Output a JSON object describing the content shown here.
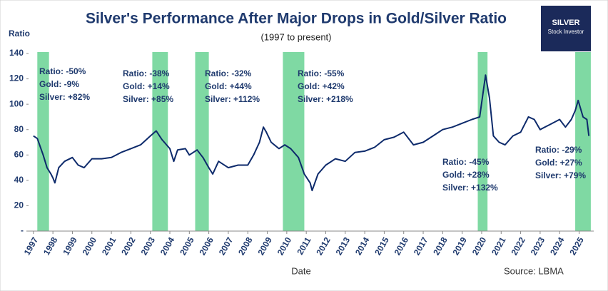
{
  "chart_data": {
    "type": "line",
    "title": "Silver's Performance After Major Drops in Gold/Silver Ratio",
    "subtitle": "(1997 to present)",
    "y_label": "Ratio",
    "x_label": "Date",
    "source": "Source: LBMA",
    "color": "#0d2a6b",
    "highlight_color": "#5fcf8c",
    "x": [
      1997.0,
      1997.2,
      1997.5,
      1997.7,
      1997.9,
      1998.0,
      1998.1,
      1998.3,
      1998.6,
      1999.0,
      1999.3,
      1999.6,
      2000.0,
      2000.5,
      2001.0,
      2001.5,
      2002.0,
      2002.5,
      2003.0,
      2003.3,
      2003.6,
      2004.0,
      2004.2,
      2004.4,
      2004.8,
      2005.0,
      2005.4,
      2005.7,
      2006.0,
      2006.2,
      2006.5,
      2007.0,
      2007.5,
      2008.0,
      2008.3,
      2008.6,
      2008.8,
      2008.95,
      2009.2,
      2009.6,
      2009.9,
      2010.2,
      2010.6,
      2010.9,
      2011.2,
      2011.3,
      2011.6,
      2012.0,
      2012.5,
      2013.0,
      2013.5,
      2014.0,
      2014.5,
      2015.0,
      2015.5,
      2016.0,
      2016.5,
      2017.0,
      2017.5,
      2018.0,
      2018.5,
      2019.0,
      2019.5,
      2019.9,
      2020.2,
      2020.4,
      2020.6,
      2020.9,
      2021.2,
      2021.6,
      2022.0,
      2022.4,
      2022.7,
      2023.0,
      2023.5,
      2024.0,
      2024.3,
      2024.6,
      2024.8,
      2024.95,
      2025.2,
      2025.4,
      2025.5
    ],
    "values": [
      75,
      73,
      60,
      50,
      45,
      42,
      38,
      50,
      55,
      58,
      52,
      50,
      57,
      57,
      58,
      62,
      65,
      68,
      75,
      79,
      72,
      65,
      55,
      64,
      65,
      60,
      64,
      58,
      50,
      45,
      55,
      50,
      52,
      52,
      60,
      70,
      82,
      78,
      70,
      65,
      68,
      65,
      58,
      45,
      38,
      32,
      45,
      52,
      57,
      55,
      62,
      63,
      66,
      72,
      74,
      78,
      68,
      70,
      75,
      80,
      82,
      85,
      88,
      90,
      123,
      105,
      75,
      70,
      68,
      75,
      78,
      90,
      88,
      80,
      84,
      88,
      82,
      88,
      95,
      103,
      90,
      88,
      75
    ],
    "highlight_periods": [
      [
        1997.2,
        1997.8
      ],
      [
        2003.1,
        2003.9
      ],
      [
        2005.3,
        2006.0
      ],
      [
        2009.8,
        2010.9
      ],
      [
        2019.8,
        2020.3
      ],
      [
        2024.8,
        2025.6
      ]
    ],
    "annotations": [
      [
        "Ratio: -50%",
        "Gold: -9%",
        "Silver: +82%"
      ],
      [
        "Ratio: -38%",
        "Gold: +14%",
        "Silver: +85%"
      ],
      [
        "Ratio: -32%",
        "Gold: +44%",
        "Silver: +112%"
      ],
      [
        "Ratio: -55%",
        "Gold: +42%",
        "Silver: +218%"
      ],
      [
        "Ratio: -45%",
        "Gold: +28%",
        "Silver: +132%"
      ],
      [
        "Ratio: -29%",
        "Gold: +27%",
        "Silver: +79%"
      ]
    ],
    "xlim": [
      1996.75,
      2025.75
    ],
    "xticks": [
      1997,
      1998,
      1999,
      2000,
      2001,
      2002,
      2003,
      2004,
      2005,
      2006,
      2007,
      2008,
      2009,
      2010,
      2011,
      2012,
      2013,
      2014,
      2015,
      2016,
      2017,
      2018,
      2019,
      2020,
      2021,
      2022,
      2023,
      2024,
      2025
    ],
    "ylim": [
      0,
      140
    ],
    "yticks": [
      {
        "value": 0,
        "label": "-"
      },
      20,
      40,
      60,
      80,
      100,
      120,
      140
    ]
  },
  "logo": {
    "title": "SILVER",
    "subtitle": "Stock Investor"
  }
}
